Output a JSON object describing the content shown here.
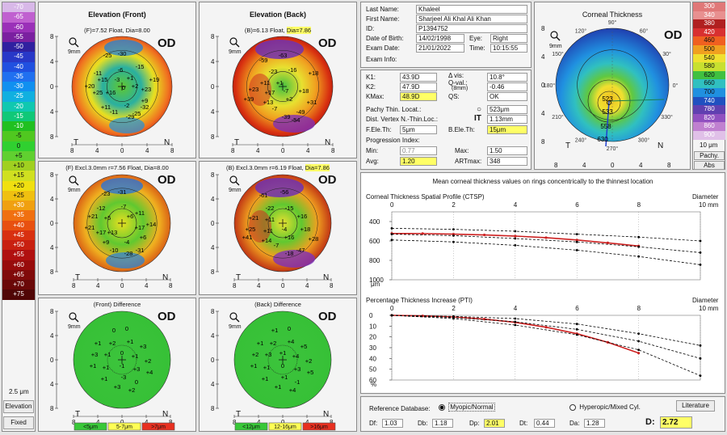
{
  "left_scale": {
    "values": [
      "-70",
      "-65",
      "-60",
      "-55",
      "-50",
      "-45",
      "-40",
      "-35",
      "-30",
      "-25",
      "-20",
      "-15",
      "-10",
      "-5",
      "0",
      "+5",
      "+10",
      "+15",
      "+20",
      "+25",
      "+30",
      "+35",
      "+40",
      "+45",
      "+50",
      "+55",
      "+60",
      "+65",
      "+70",
      "+75"
    ],
    "colors": [
      "#d8b8e8",
      "#c060d0",
      "#9a30b8",
      "#7a20a0",
      "#3020a0",
      "#2838c8",
      "#2050e0",
      "#2070f0",
      "#1090f0",
      "#10b0e0",
      "#10c8b0",
      "#10c878",
      "#20c020",
      "#50c820",
      "#30d030",
      "#60d030",
      "#a0d020",
      "#d0e020",
      "#f0e010",
      "#f0c010",
      "#f0a010",
      "#f07010",
      "#e85010",
      "#d83010",
      "#c82010",
      "#b01010",
      "#980c0c",
      "#800a0a",
      "#6a0808",
      "#500606"
    ],
    "step": "2.5 μm",
    "elevation_button": "Elevation",
    "fixed_button": "Fixed"
  },
  "maps": {
    "front": {
      "title": "Elevation (Front)",
      "sub_a": "(F)=7.52 Float, Dia=8.00",
      "sub_b": "",
      "od": "OD"
    },
    "back": {
      "title": "Elevation (Back)",
      "sub_a": "(B)=6.13 Float, ",
      "sub_b": "Dia=7.86",
      "od": "OD"
    },
    "front_excl": {
      "sub_a": "(F) Excl.3.0mm  r=7.56 Float, Dia=8.00",
      "sub_b": "",
      "od": "OD"
    },
    "back_excl": {
      "sub_a": "(B) Excl.3.0mm  r=6.19 Float, ",
      "sub_b": "Dia=7.86",
      "od": "OD"
    },
    "front_diff": {
      "sub_a": "(Front) Difference",
      "od": "OD",
      "legend": [
        "<5μm",
        "5-7μm",
        ">7μm"
      ]
    },
    "back_diff": {
      "sub_a": "(Back) Difference",
      "od": "OD",
      "legend": [
        "<12μm",
        "12-16μm",
        ">16μm"
      ]
    },
    "axis_ticks": [
      "8",
      "4",
      "0",
      "4",
      "8"
    ],
    "letters": {
      "t": "T",
      "n": "N"
    },
    "mm": "9mm"
  },
  "patient": {
    "last_name_label": "Last Name:",
    "last_name": "Khaleel",
    "first_name_label": "First Name:",
    "first_name": "Sharjeel Ali Khal Ali Khan",
    "id_label": "ID:",
    "id": "P1394752",
    "dob_label": "Date of Birth:",
    "dob": "14/02/1998",
    "eye_label": "Eye:",
    "eye": "Right",
    "exam_date_label": "Exam Date:",
    "exam_date": "21/01/2022",
    "time_label": "Time:",
    "time": "10:15:55",
    "exam_info_label": "Exam Info:"
  },
  "measurements": {
    "k1_label": "K1:",
    "k1": "43.9D",
    "k2_label": "K2:",
    "k2": "47.9D",
    "kmax_label": "KMax:",
    "kmax": "48.9D",
    "avis_label": "Δ vis:",
    "avis": "10.8°",
    "qval_label": "Q-val.:",
    "qval_sub": "(8mm)",
    "qval": "-0.46",
    "qs_label": "QS:",
    "qs": "OK",
    "pachy_label": "Pachy Thin. Locat.:",
    "pachy_symbol": "○",
    "pachy": "523μm",
    "dist_label": "Dist. Vertex N.-Thin.Loc.:",
    "dist_symbol": "IT",
    "dist": "1.13mm",
    "fele_label": "F.Ele.Th:",
    "fele": "5μm",
    "bele_label": "B.Ele.Th:",
    "bele": "15μm",
    "prog_label": "Progression Index:",
    "min_label": "Min:",
    "min": "0.77",
    "max_label": "Max:",
    "max": "1.50",
    "avg_label": "Avg:",
    "avg": "1.20",
    "art_label": "ARTmax:",
    "art": "348"
  },
  "corneal_thickness": {
    "title": "Corneal Thickness",
    "od": "OD",
    "scale_values": [
      "300",
      "340",
      "380",
      "420",
      "460",
      "500",
      "540",
      "580",
      "620",
      "660",
      "700",
      "740",
      "780",
      "820",
      "860",
      "900"
    ],
    "scale_colors": [
      "#e07878",
      "#e89090",
      "#b02020",
      "#d83030",
      "#f06020",
      "#f0a020",
      "#f0e030",
      "#c8e030",
      "#40c040",
      "#30c0c0",
      "#2090e0",
      "#2050c0",
      "#6040b0",
      "#9050c0",
      "#c080d0",
      "#e0c0e8"
    ],
    "step": "10 μm",
    "pachy_button": "Pachy.",
    "abs_button": "Abs",
    "angles": [
      "90°",
      "60°",
      "30°",
      "0°",
      "330°",
      "300°",
      "270°",
      "240°",
      "210°",
      "180°",
      "150°",
      "120°"
    ],
    "values": [
      "523",
      "533",
      "558",
      "630"
    ],
    "letters": {
      "t": "T",
      "n": "N"
    },
    "mm": "9mm"
  },
  "profile": {
    "header": "Mean corneal thickness values on rings concentrically to the thinnest location",
    "ctsp_title": "Corneal Thickness Spatial Profile (CTSP)",
    "pti_title": "Percentage Thickness Increase (PTI)",
    "diameter_label": "Diameter",
    "x_ticks": [
      "0",
      "2",
      "4",
      "6",
      "8",
      "10 mm"
    ],
    "ctsp_y_ticks": [
      "400",
      "600",
      "800",
      "1000"
    ],
    "ctsp_unit": "μm",
    "pti_y_ticks": [
      "0",
      "10",
      "20",
      "30",
      "40",
      "50",
      "60"
    ],
    "pti_unit": "%"
  },
  "chart_data": [
    {
      "type": "line",
      "title": "Corneal Thickness Spatial Profile (CTSP)",
      "xlabel": "Diameter (mm)",
      "ylabel": "μm",
      "xlim": [
        0,
        10
      ],
      "ylim": [
        1000,
        300
      ],
      "series": [
        {
          "name": "",
          "color": "#cc2020",
          "x": [
            0,
            1,
            2,
            3,
            4,
            5,
            6,
            7,
            8
          ],
          "values": [
            523,
            524,
            530,
            538,
            550,
            566,
            590,
            620,
            652
          ]
        },
        {
          "name": "",
          "color": "#000000",
          "x": [
            0,
            2,
            4,
            6,
            8,
            10
          ],
          "values": [
            470,
            480,
            500,
            530,
            560,
            600
          ]
        },
        {
          "name": "",
          "color": "#000000",
          "x": [
            0,
            2,
            4,
            6,
            8,
            10
          ],
          "values": [
            530,
            545,
            575,
            610,
            660,
            720
          ]
        },
        {
          "name": "",
          "color": "#000000",
          "x": [
            0,
            2,
            4,
            6,
            8,
            10
          ],
          "values": [
            590,
            610,
            645,
            695,
            760,
            845
          ]
        }
      ]
    },
    {
      "type": "line",
      "title": "Percentage Thickness Increase (PTI)",
      "xlabel": "Diameter (mm)",
      "ylabel": "%",
      "xlim": [
        0,
        10
      ],
      "ylim": [
        60,
        0
      ],
      "series": [
        {
          "name": "",
          "color": "#cc2020",
          "x": [
            0,
            1,
            2,
            3,
            4,
            5,
            6,
            7,
            8
          ],
          "values": [
            0,
            0.5,
            1.5,
            3.5,
            6.5,
            11,
            17,
            25,
            35
          ]
        },
        {
          "name": "",
          "color": "#000000",
          "x": [
            0,
            2,
            4,
            6,
            8,
            10
          ],
          "values": [
            0,
            1,
            3,
            8,
            17,
            28
          ]
        },
        {
          "name": "",
          "color": "#000000",
          "x": [
            0,
            2,
            4,
            6,
            8,
            10
          ],
          "values": [
            0,
            2,
            6,
            13,
            24,
            40
          ]
        },
        {
          "name": "",
          "color": "#000000",
          "x": [
            0,
            2,
            4,
            6,
            8,
            10
          ],
          "values": [
            0,
            3,
            9,
            18,
            32,
            56
          ]
        }
      ]
    }
  ],
  "bottom": {
    "ref_label": "Reference Database:",
    "myopic": "Myopic/Normal",
    "hyperopic": "Hyperopic/Mixed Cyl.",
    "literature": "Literature",
    "df_label": "Df:",
    "df": "1.03",
    "db_label": "Db:",
    "db": "1.18",
    "dp_label": "Dp:",
    "dp": "2.01",
    "dt_label": "Dt:",
    "dt": "0.44",
    "da_label": "Da:",
    "da": "1.28",
    "d_label": "D:",
    "d": "2.72"
  }
}
